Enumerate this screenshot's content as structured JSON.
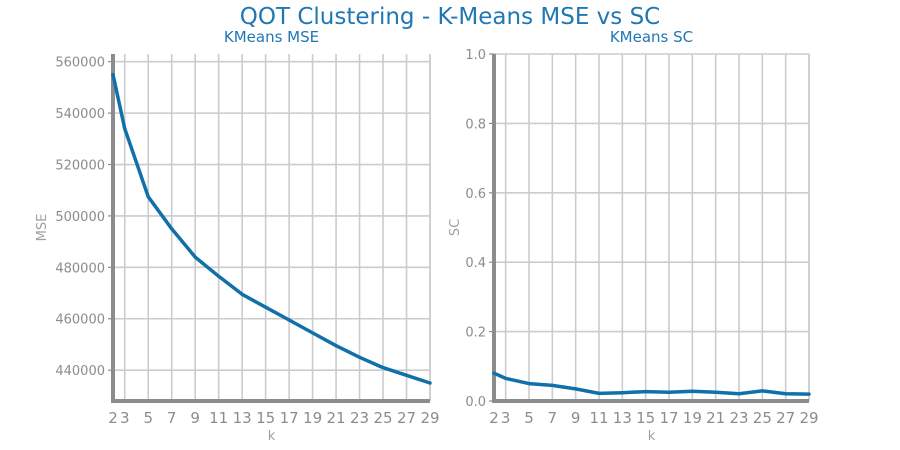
{
  "suptitle": "QOT Clustering - K-Means MSE vs SC",
  "colors": {
    "line": "#1170aa",
    "title": "#1f77b4",
    "grid": "#cccccc",
    "axis": "#8c8c8c",
    "tick_text": "#8c8c8c",
    "label_text": "#a0a0a0"
  },
  "chart_data": [
    {
      "type": "line",
      "title": "KMeans MSE",
      "xlabel": "k",
      "ylabel": "MSE",
      "xlim": [
        2,
        29
      ],
      "ylim": [
        428000,
        563000
      ],
      "grid": true,
      "xticks": [
        2,
        3,
        5,
        7,
        9,
        11,
        13,
        15,
        17,
        19,
        21,
        23,
        25,
        27,
        29
      ],
      "yticks": [
        440000,
        460000,
        480000,
        500000,
        520000,
        540000,
        560000
      ],
      "ytick_labels": [
        "440000",
        "460000",
        "480000",
        "500000",
        "520000",
        "540000",
        "560000"
      ],
      "series": [
        {
          "x": [
            2,
            3,
            5,
            7,
            9,
            11,
            13,
            15,
            17,
            19,
            21,
            23,
            25,
            27,
            29
          ],
          "values": [
            555000,
            534000,
            507500,
            495000,
            484000,
            476500,
            469500,
            464500,
            459500,
            454500,
            449500,
            445000,
            441000,
            438000,
            435000
          ]
        }
      ]
    },
    {
      "type": "line",
      "title": "KMeans SC",
      "xlabel": "k",
      "ylabel": "SC",
      "xlim": [
        2,
        29
      ],
      "ylim": [
        0,
        1.0
      ],
      "grid": true,
      "xticks": [
        2,
        3,
        5,
        7,
        9,
        11,
        13,
        15,
        17,
        19,
        21,
        23,
        25,
        27,
        29
      ],
      "yticks": [
        0.0,
        0.2,
        0.4,
        0.6,
        0.8,
        1.0
      ],
      "ytick_labels": [
        "0.0",
        "0.2",
        "0.4",
        "0.6",
        "0.8",
        "1.0"
      ],
      "series": [
        {
          "x": [
            2,
            3,
            5,
            7,
            9,
            11,
            13,
            15,
            17,
            19,
            21,
            23,
            25,
            27,
            29
          ],
          "values": [
            0.08,
            0.065,
            0.05,
            0.045,
            0.035,
            0.022,
            0.024,
            0.027,
            0.025,
            0.028,
            0.025,
            0.021,
            0.029,
            0.021,
            0.02
          ]
        }
      ]
    }
  ]
}
